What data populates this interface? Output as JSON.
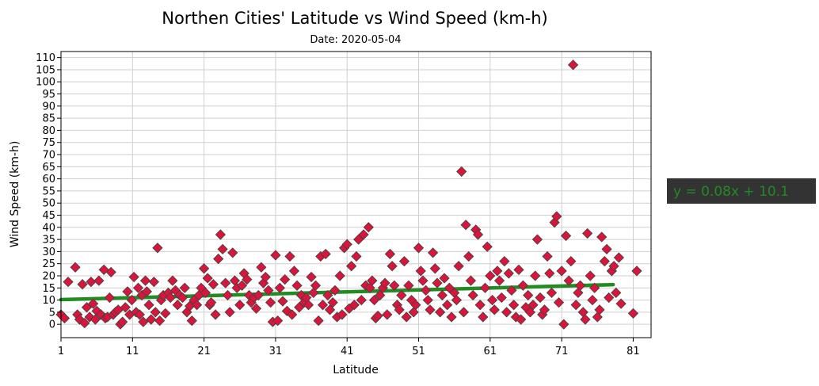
{
  "chart_data": {
    "type": "scatter",
    "title": "Northen Cities' Latitude vs Wind Speed (km-h)",
    "subtitle": "Date: 2020-05-04",
    "xlabel": "Latitude",
    "ylabel": "Wind Speed (km-h)",
    "xlim": [
      1,
      83.5
    ],
    "ylim": [
      -5.5,
      112.5
    ],
    "xticks": [
      1,
      11,
      21,
      31,
      41,
      51,
      61,
      71,
      81
    ],
    "yticks": [
      0,
      5,
      10,
      15,
      20,
      25,
      30,
      35,
      40,
      45,
      50,
      55,
      60,
      65,
      70,
      75,
      80,
      85,
      90,
      95,
      100,
      105,
      110
    ],
    "grid": true,
    "marker_color": "#dc143c",
    "marker_edge": "#444444",
    "line_color": "#228b22",
    "regression": {
      "slope": 0.08,
      "intercept": 10.1,
      "x_range": [
        1,
        78.2
      ],
      "equation": "y = 0.08x + 10.1"
    },
    "annotation_bg": "#333333",
    "points": [
      [
        1,
        4
      ],
      [
        1.5,
        2.5
      ],
      [
        2,
        17.5
      ],
      [
        3,
        23.5
      ],
      [
        3.3,
        4
      ],
      [
        3.6,
        2
      ],
      [
        4,
        16.5
      ],
      [
        4.3,
        0.5
      ],
      [
        4.6,
        7
      ],
      [
        5,
        3
      ],
      [
        5.2,
        17.5
      ],
      [
        5.5,
        8.5
      ],
      [
        5.8,
        2
      ],
      [
        6,
        5.5
      ],
      [
        6.3,
        18
      ],
      [
        6.6,
        4
      ],
      [
        7,
        22.5
      ],
      [
        7.2,
        2.5
      ],
      [
        7.5,
        3
      ],
      [
        7.8,
        11
      ],
      [
        8,
        21.5
      ],
      [
        8.3,
        4
      ],
      [
        8.6,
        5
      ],
      [
        9,
        6
      ],
      [
        9.3,
        0
      ],
      [
        9.6,
        1
      ],
      [
        10,
        7
      ],
      [
        10.3,
        13.5
      ],
      [
        10.6,
        4
      ],
      [
        10.9,
        10
      ],
      [
        11.2,
        19.5
      ],
      [
        11.5,
        5
      ],
      [
        11.8,
        15
      ],
      [
        12,
        4
      ],
      [
        12.3,
        12
      ],
      [
        12.5,
        1
      ],
      [
        12.8,
        18
      ],
      [
        13,
        13.5
      ],
      [
        13.3,
        8
      ],
      [
        13.6,
        2
      ],
      [
        14,
        17.5
      ],
      [
        14.2,
        5
      ],
      [
        14.5,
        31.5
      ],
      [
        14.8,
        1.5
      ],
      [
        15,
        10
      ],
      [
        15.3,
        12
      ],
      [
        15.6,
        4.5
      ],
      [
        16,
        13
      ],
      [
        16.3,
        11
      ],
      [
        16.6,
        18
      ],
      [
        17,
        14
      ],
      [
        17.3,
        8
      ],
      [
        17.6,
        12
      ],
      [
        18,
        11
      ],
      [
        18.3,
        15
      ],
      [
        18.6,
        5
      ],
      [
        19,
        7.5
      ],
      [
        19.3,
        1.5
      ],
      [
        19.6,
        10
      ],
      [
        20,
        8
      ],
      [
        20.3,
        12
      ],
      [
        20.6,
        15
      ],
      [
        21,
        23
      ],
      [
        21.2,
        13
      ],
      [
        21.5,
        19
      ],
      [
        21.8,
        8
      ],
      [
        22,
        9
      ],
      [
        22.3,
        16.5
      ],
      [
        22.6,
        4
      ],
      [
        23,
        27
      ],
      [
        23.3,
        37
      ],
      [
        23.6,
        31
      ],
      [
        24,
        17
      ],
      [
        24.3,
        12
      ],
      [
        24.6,
        5
      ],
      [
        25,
        29.5
      ],
      [
        25.3,
        18
      ],
      [
        25.6,
        15
      ],
      [
        26,
        8
      ],
      [
        26.3,
        16
      ],
      [
        26.6,
        21
      ],
      [
        27,
        18.5
      ],
      [
        27.3,
        12
      ],
      [
        27.6,
        9
      ],
      [
        28,
        11
      ],
      [
        28.3,
        6.5
      ],
      [
        28.6,
        12
      ],
      [
        29,
        23.5
      ],
      [
        29.3,
        17
      ],
      [
        29.6,
        19.5
      ],
      [
        30,
        14
      ],
      [
        30.3,
        9
      ],
      [
        30.6,
        1
      ],
      [
        31,
        28.5
      ],
      [
        31.3,
        1.5
      ],
      [
        31.6,
        15
      ],
      [
        32,
        9.5
      ],
      [
        32.3,
        18.5
      ],
      [
        32.6,
        5.5
      ],
      [
        33,
        28
      ],
      [
        33.3,
        4
      ],
      [
        33.6,
        22
      ],
      [
        34,
        16
      ],
      [
        34.3,
        7
      ],
      [
        34.6,
        12
      ],
      [
        35,
        9
      ],
      [
        35.3,
        11
      ],
      [
        35.6,
        8
      ],
      [
        36,
        19.5
      ],
      [
        36.3,
        13
      ],
      [
        36.6,
        16
      ],
      [
        37,
        1.5
      ],
      [
        37.3,
        28
      ],
      [
        37.6,
        8
      ],
      [
        38,
        29
      ],
      [
        38.3,
        12
      ],
      [
        38.6,
        6
      ],
      [
        39,
        9
      ],
      [
        39.3,
        14
      ],
      [
        39.6,
        3
      ],
      [
        40,
        20
      ],
      [
        40.3,
        4
      ],
      [
        40.6,
        31.5
      ],
      [
        41,
        33
      ],
      [
        41.3,
        6.5
      ],
      [
        41.6,
        24
      ],
      [
        42,
        8
      ],
      [
        42.3,
        28
      ],
      [
        42.6,
        35
      ],
      [
        43,
        10
      ],
      [
        43.3,
        37
      ],
      [
        43.6,
        16
      ],
      [
        44,
        40
      ],
      [
        44.2,
        15
      ],
      [
        44.5,
        18
      ],
      [
        44.8,
        10
      ],
      [
        45,
        2.5
      ],
      [
        45.3,
        3.5
      ],
      [
        45.6,
        12
      ],
      [
        46,
        15
      ],
      [
        46.3,
        17
      ],
      [
        46.6,
        4
      ],
      [
        47,
        29
      ],
      [
        47.3,
        24
      ],
      [
        47.6,
        16
      ],
      [
        48,
        8
      ],
      [
        48.3,
        6
      ],
      [
        48.6,
        12
      ],
      [
        49,
        26
      ],
      [
        49.3,
        3
      ],
      [
        49.6,
        16
      ],
      [
        50,
        10
      ],
      [
        50.3,
        5
      ],
      [
        50.6,
        8
      ],
      [
        51,
        31.5
      ],
      [
        51.3,
        22
      ],
      [
        51.6,
        18
      ],
      [
        52,
        14
      ],
      [
        52.3,
        10
      ],
      [
        52.6,
        6
      ],
      [
        53,
        29.5
      ],
      [
        53.3,
        23
      ],
      [
        53.6,
        17
      ],
      [
        54,
        5
      ],
      [
        54.3,
        12
      ],
      [
        54.6,
        19
      ],
      [
        55,
        8
      ],
      [
        55.3,
        15
      ],
      [
        55.6,
        3
      ],
      [
        56,
        13
      ],
      [
        56.3,
        10
      ],
      [
        56.6,
        24
      ],
      [
        57,
        63
      ],
      [
        57.3,
        5
      ],
      [
        57.6,
        41
      ],
      [
        58,
        28
      ],
      [
        58.3,
        18
      ],
      [
        58.6,
        12
      ],
      [
        59,
        39
      ],
      [
        59.3,
        37
      ],
      [
        59.6,
        8
      ],
      [
        60,
        3
      ],
      [
        60.3,
        15
      ],
      [
        60.6,
        32
      ],
      [
        61,
        20
      ],
      [
        61.3,
        10
      ],
      [
        61.6,
        6
      ],
      [
        62,
        22
      ],
      [
        62.3,
        18
      ],
      [
        62.6,
        11
      ],
      [
        63,
        26
      ],
      [
        63.3,
        5
      ],
      [
        63.6,
        21
      ],
      [
        64,
        14
      ],
      [
        64.3,
        8
      ],
      [
        64.6,
        3
      ],
      [
        65,
        22.5
      ],
      [
        65.3,
        2
      ],
      [
        65.6,
        16
      ],
      [
        66,
        7
      ],
      [
        66.3,
        12
      ],
      [
        66.6,
        5
      ],
      [
        67,
        8
      ],
      [
        67.3,
        20
      ],
      [
        67.6,
        35
      ],
      [
        68,
        11
      ],
      [
        68.3,
        4
      ],
      [
        68.6,
        6
      ],
      [
        69,
        28
      ],
      [
        69.3,
        21
      ],
      [
        69.6,
        13
      ],
      [
        70,
        42
      ],
      [
        70.3,
        44.5
      ],
      [
        70.6,
        9
      ],
      [
        71,
        22
      ],
      [
        71.3,
        0
      ],
      [
        71.6,
        36.5
      ],
      [
        72,
        18
      ],
      [
        72.3,
        26
      ],
      [
        72.6,
        107
      ],
      [
        73,
        8
      ],
      [
        73.3,
        13
      ],
      [
        73.6,
        16
      ],
      [
        74,
        5
      ],
      [
        74.3,
        2
      ],
      [
        74.6,
        37.5
      ],
      [
        75,
        20
      ],
      [
        75.3,
        10
      ],
      [
        75.6,
        15
      ],
      [
        76,
        3
      ],
      [
        76.3,
        6
      ],
      [
        76.6,
        36
      ],
      [
        77,
        26
      ],
      [
        77.3,
        31
      ],
      [
        77.6,
        11
      ],
      [
        78,
        22
      ],
      [
        78.3,
        24
      ],
      [
        78.6,
        13
      ],
      [
        79,
        27.5
      ],
      [
        79.3,
        8.5
      ],
      [
        81,
        4.5
      ],
      [
        81.5,
        22
      ]
    ]
  }
}
